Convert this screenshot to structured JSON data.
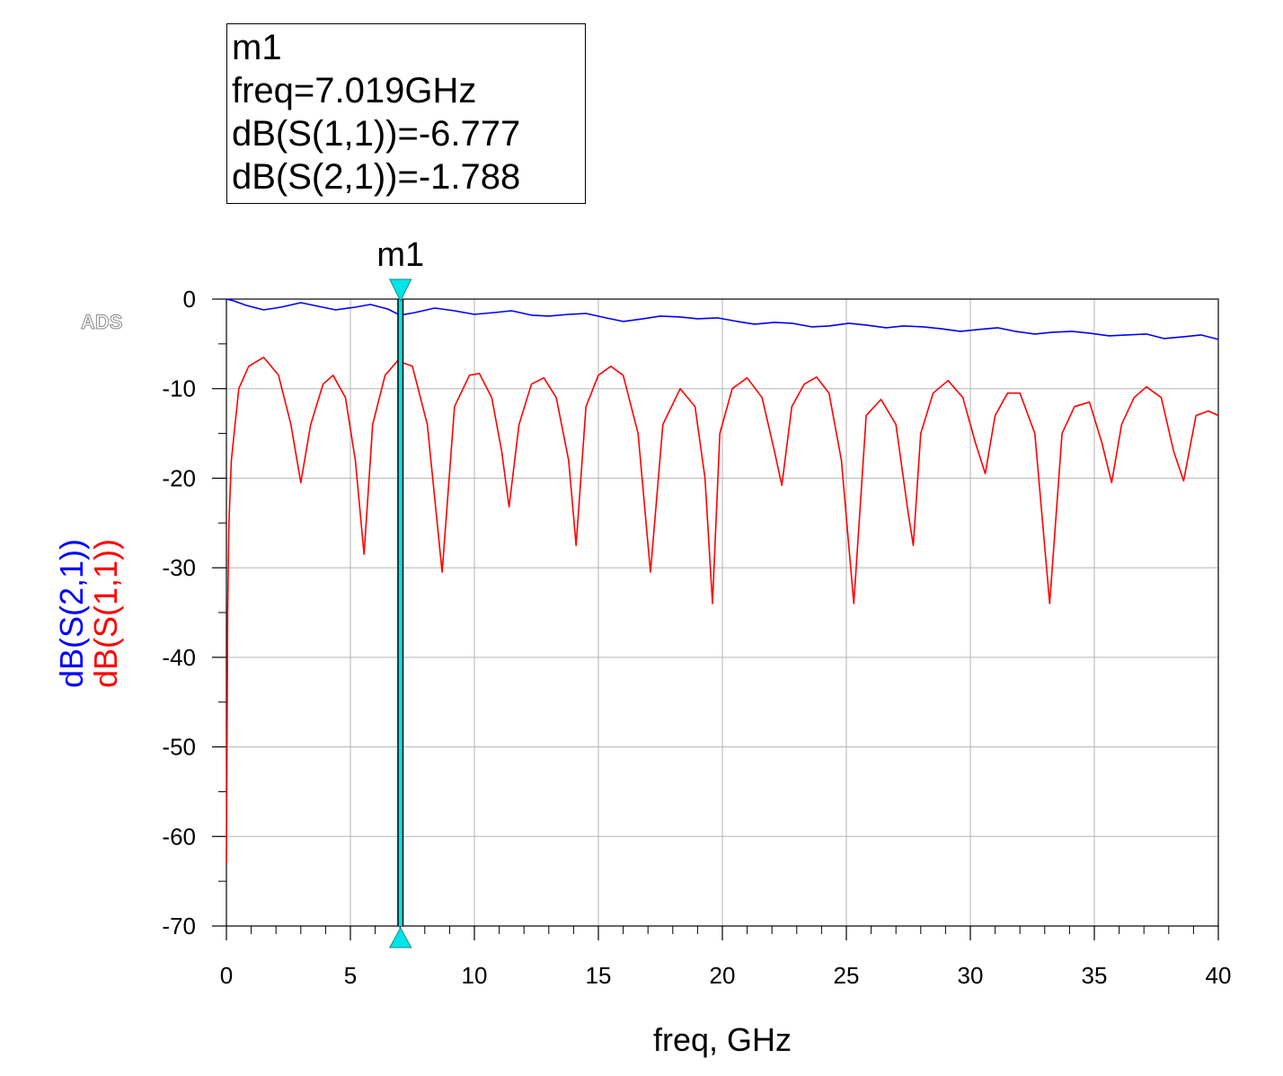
{
  "marker": {
    "name": "m1",
    "freq_line": "freq=7.019GHz",
    "s11_line": "dB(S(1,1))=-6.777",
    "s21_line": "dB(S(2,1))=-1.788",
    "freq_ghz": 7.019,
    "color": "#00e5e5"
  },
  "watermark": "ADS",
  "chart_data": {
    "type": "line",
    "xlabel": "freq, GHz",
    "ylabel_parts": [
      {
        "text": "dB(S(2,1))",
        "color": "#0000ff"
      },
      {
        "text": "dB(S(1,1))",
        "color": "#ff0000"
      }
    ],
    "xlim": [
      0,
      40
    ],
    "ylim": [
      -70,
      0
    ],
    "grid": true,
    "xticks": [
      0,
      5,
      10,
      15,
      20,
      25,
      30,
      35,
      40
    ],
    "yticks": [
      0,
      -10,
      -20,
      -30,
      -40,
      -50,
      -60,
      -70
    ],
    "series": [
      {
        "name": "dB(S(2,1))",
        "color": "#0000ff",
        "x": [
          0,
          0.3,
          0.8,
          1.5,
          2.2,
          3.0,
          3.7,
          4.4,
          5.2,
          5.8,
          6.5,
          7.0,
          7.6,
          8.4,
          9.2,
          10.0,
          10.8,
          11.5,
          12.3,
          13.0,
          13.8,
          14.5,
          15.3,
          16.0,
          16.8,
          17.5,
          18.3,
          19.0,
          19.8,
          20.6,
          21.3,
          22.1,
          22.8,
          23.6,
          24.3,
          25.1,
          25.8,
          26.6,
          27.3,
          28.1,
          28.8,
          29.6,
          30.3,
          31.1,
          31.8,
          32.6,
          33.3,
          34.1,
          34.8,
          35.6,
          36.3,
          37.1,
          37.8,
          38.6,
          39.3,
          40.0
        ],
        "values": [
          0.0,
          -0.2,
          -0.7,
          -1.2,
          -0.9,
          -0.4,
          -0.8,
          -1.2,
          -0.9,
          -0.6,
          -1.1,
          -1.8,
          -1.5,
          -1.0,
          -1.3,
          -1.7,
          -1.5,
          -1.3,
          -1.8,
          -1.9,
          -1.7,
          -1.6,
          -2.1,
          -2.5,
          -2.2,
          -1.9,
          -2.0,
          -2.2,
          -2.1,
          -2.5,
          -2.8,
          -2.6,
          -2.7,
          -3.1,
          -3.0,
          -2.7,
          -2.9,
          -3.2,
          -3.0,
          -3.1,
          -3.3,
          -3.6,
          -3.4,
          -3.2,
          -3.6,
          -3.9,
          -3.7,
          -3.6,
          -3.8,
          -4.1,
          -4.0,
          -3.9,
          -4.4,
          -4.2,
          -4.0,
          -4.5
        ]
      },
      {
        "name": "dB(S(1,1))",
        "color": "#ff0000",
        "x": [
          0,
          0.05,
          0.1,
          0.2,
          0.5,
          0.9,
          1.5,
          2.1,
          2.6,
          3.0,
          3.4,
          3.9,
          4.3,
          4.8,
          5.2,
          5.55,
          5.9,
          6.4,
          6.9,
          7.5,
          8.1,
          8.7,
          9.2,
          9.8,
          10.2,
          10.7,
          11.1,
          11.4,
          11.8,
          12.3,
          12.8,
          13.3,
          13.8,
          14.1,
          14.5,
          15.0,
          15.5,
          16.0,
          16.6,
          17.1,
          17.6,
          18.3,
          18.9,
          19.3,
          19.6,
          19.9,
          20.4,
          21.0,
          21.6,
          22.1,
          22.4,
          22.8,
          23.3,
          23.8,
          24.3,
          24.8,
          25.3,
          25.8,
          26.4,
          27.0,
          27.5,
          27.7,
          28.0,
          28.5,
          29.1,
          29.7,
          30.2,
          30.6,
          31.0,
          31.5,
          32.0,
          32.6,
          33.2,
          33.7,
          34.2,
          34.8,
          35.3,
          35.7,
          36.1,
          36.6,
          37.1,
          37.7,
          38.2,
          38.6,
          39.1,
          39.6,
          40.0
        ],
        "values": [
          -63,
          -35,
          -25,
          -18,
          -10,
          -7.5,
          -6.5,
          -8.5,
          -14,
          -20.5,
          -14,
          -9.5,
          -8.5,
          -11,
          -18,
          -28.5,
          -14,
          -8.5,
          -6.9,
          -7.5,
          -14,
          -30.5,
          -12,
          -8.5,
          -8.3,
          -11,
          -17,
          -23.2,
          -14,
          -9.5,
          -8.8,
          -11,
          -18,
          -27.5,
          -12,
          -8.5,
          -7.5,
          -8.5,
          -15,
          -30.5,
          -14,
          -10,
          -12,
          -20,
          -34,
          -15,
          -10,
          -8.8,
          -11,
          -17,
          -20.8,
          -12,
          -9.5,
          -8.7,
          -10.5,
          -18,
          -34,
          -13,
          -11.2,
          -14,
          -24,
          -27.5,
          -15,
          -10.5,
          -9.1,
          -11,
          -16,
          -19.5,
          -13,
          -10.5,
          -10.5,
          -15,
          -34,
          -15,
          -12,
          -11.5,
          -16,
          -20.5,
          -14,
          -11,
          -9.8,
          -11,
          -17,
          -20.3,
          -13,
          -12.5,
          -13
        ]
      }
    ]
  }
}
